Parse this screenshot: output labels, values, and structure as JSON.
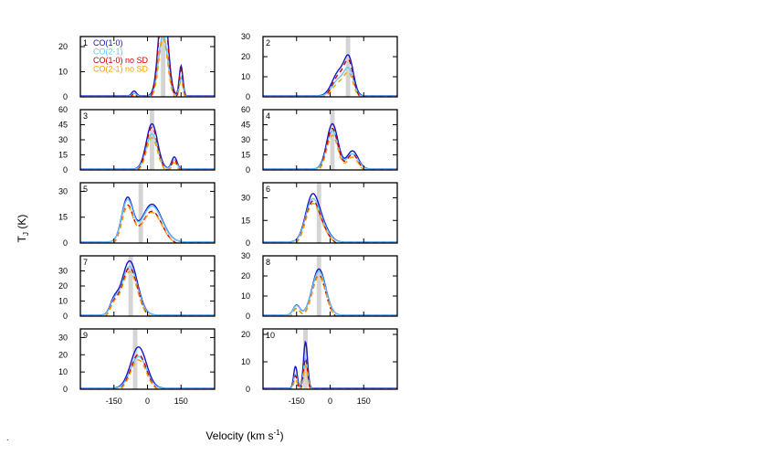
{
  "chart_data": {
    "type": "line",
    "ylabel_main": "T",
    "ylabel_sub": "J",
    "ylabel_unit": " (K)",
    "xlabel_main": "Velocity (km s",
    "xlabel_sup": "-1",
    "xlabel_close": ")",
    "footnote": ".",
    "xlim": [
      -300,
      300
    ],
    "xtick_values": [
      -150,
      0,
      150
    ],
    "xtick_labels": [
      "-150",
      "0",
      "150"
    ],
    "series_styles": [
      {
        "name": "CO(1-0)",
        "color": "#1414c8",
        "dash": "none",
        "width": 1.4
      },
      {
        "name": "CO(2-1)",
        "color": "#64c8ff",
        "dash": "none",
        "width": 1.4
      },
      {
        "name": "CO(1-0) no SD",
        "color": "#c80000",
        "dash": "5,4",
        "width": 1.4
      },
      {
        "name": "CO(2-1) no SD",
        "color": "#f0a000",
        "dash": "5,4",
        "width": 1.4
      }
    ],
    "panels": [
      {
        "id": "1",
        "center": 70,
        "ylim": [
          0,
          24
        ],
        "yticks": [
          0,
          10,
          20
        ],
        "comps": [
          [
            70,
            20,
            40
          ],
          [
            150,
            8,
            12
          ],
          [
            -60,
            10,
            2
          ]
        ],
        "ratio21": 0.62,
        "nosd": 0.95,
        "nosd21": 0.6,
        "legend": true
      },
      {
        "id": "2",
        "center": 80,
        "ylim": [
          0,
          30
        ],
        "yticks": [
          0,
          10,
          20,
          30
        ],
        "comps": [
          [
            40,
            30,
            12
          ],
          [
            85,
            20,
            16
          ]
        ],
        "ratio21": 0.7,
        "nosd": 0.95,
        "nosd21": 0.65,
        "legend": false
      },
      {
        "id": "3",
        "center": 20,
        "ylim": [
          0,
          60
        ],
        "yticks": [
          0,
          15,
          30,
          45,
          60
        ],
        "comps": [
          [
            20,
            25,
            45
          ],
          [
            120,
            12,
            12
          ]
        ],
        "ratio21": 0.78,
        "nosd": 0.98,
        "nosd21": 0.75,
        "legend": false
      },
      {
        "id": "4",
        "center": 10,
        "ylim": [
          0,
          60
        ],
        "yticks": [
          0,
          15,
          30,
          45,
          60
        ],
        "comps": [
          [
            10,
            25,
            45
          ],
          [
            100,
            25,
            18
          ]
        ],
        "ratio21": 0.85,
        "nosd": 0.95,
        "nosd21": 0.8,
        "legend": false
      },
      {
        "id": "5",
        "center": -30,
        "ylim": [
          0,
          35
        ],
        "yticks": [
          0,
          15,
          30
        ],
        "comps": [
          [
            -90,
            25,
            25
          ],
          [
            20,
            45,
            22
          ]
        ],
        "ratio21": 0.95,
        "nosd": 0.88,
        "nosd21": 0.85,
        "legend": false
      },
      {
        "id": "6",
        "center": -50,
        "ylim": [
          0,
          40
        ],
        "yticks": [
          0,
          15,
          30
        ],
        "comps": [
          [
            -80,
            30,
            30
          ],
          [
            -30,
            30,
            8
          ]
        ],
        "ratio21": 0.9,
        "nosd": 0.9,
        "nosd21": 0.85,
        "legend": false
      },
      {
        "id": "7",
        "center": -75,
        "ylim": [
          0,
          40
        ],
        "yticks": [
          0,
          10,
          20,
          30
        ],
        "comps": [
          [
            -80,
            35,
            36
          ],
          [
            -150,
            18,
            8
          ]
        ],
        "ratio21": 0.9,
        "nosd": 0.92,
        "nosd21": 0.85,
        "legend": false
      },
      {
        "id": "8",
        "center": -50,
        "ylim": [
          0,
          30
        ],
        "yticks": [
          0,
          10,
          20,
          30
        ],
        "comps": [
          [
            -50,
            30,
            23
          ],
          [
            -150,
            15,
            5
          ]
        ],
        "ratio21": 0.95,
        "nosd": 0.92,
        "nosd21": 0.9,
        "legend": false
      },
      {
        "id": "9",
        "center": -55,
        "ylim": [
          0,
          35
        ],
        "yticks": [
          0,
          10,
          20,
          30
        ],
        "comps": [
          [
            -40,
            35,
            24
          ]
        ],
        "ratio21": 0.78,
        "nosd": 0.88,
        "nosd21": 0.75,
        "legend": false
      },
      {
        "id": "10",
        "center": -110,
        "ylim": [
          0,
          22
        ],
        "yticks": [
          0,
          10,
          20
        ],
        "comps": [
          [
            -110,
            9,
            17
          ],
          [
            -155,
            8,
            8
          ]
        ],
        "ratio21": 0.65,
        "nosd": 0.7,
        "nosd21": 0.55,
        "legend": false
      }
    ]
  }
}
